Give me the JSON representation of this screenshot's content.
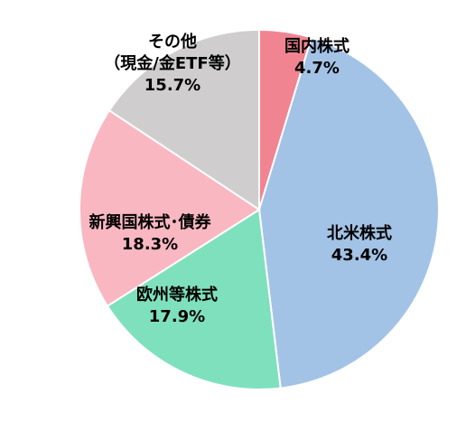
{
  "chart_data": {
    "type": "pie",
    "title": "",
    "start_angle_deg": 0,
    "direction": "clockwise",
    "slices": [
      {
        "label_lines": [
          "国内株式"
        ],
        "value_label": "4.7%",
        "value": 4.7,
        "color": "#f08591"
      },
      {
        "label_lines": [
          "北米株式"
        ],
        "value_label": "43.4%",
        "value": 43.4,
        "color": "#a3c3e6"
      },
      {
        "label_lines": [
          "欧州等株式"
        ],
        "value_label": "17.9%",
        "value": 17.9,
        "color": "#7fe0bd"
      },
      {
        "label_lines": [
          "新興国株式･債券"
        ],
        "value_label": "18.3%",
        "value": 18.3,
        "color": "#f9b7c1"
      },
      {
        "label_lines": [
          "その他",
          "（現金/金ETF等）"
        ],
        "value_label": "15.7%",
        "value": 15.7,
        "color": "#cfcdcd"
      }
    ]
  }
}
